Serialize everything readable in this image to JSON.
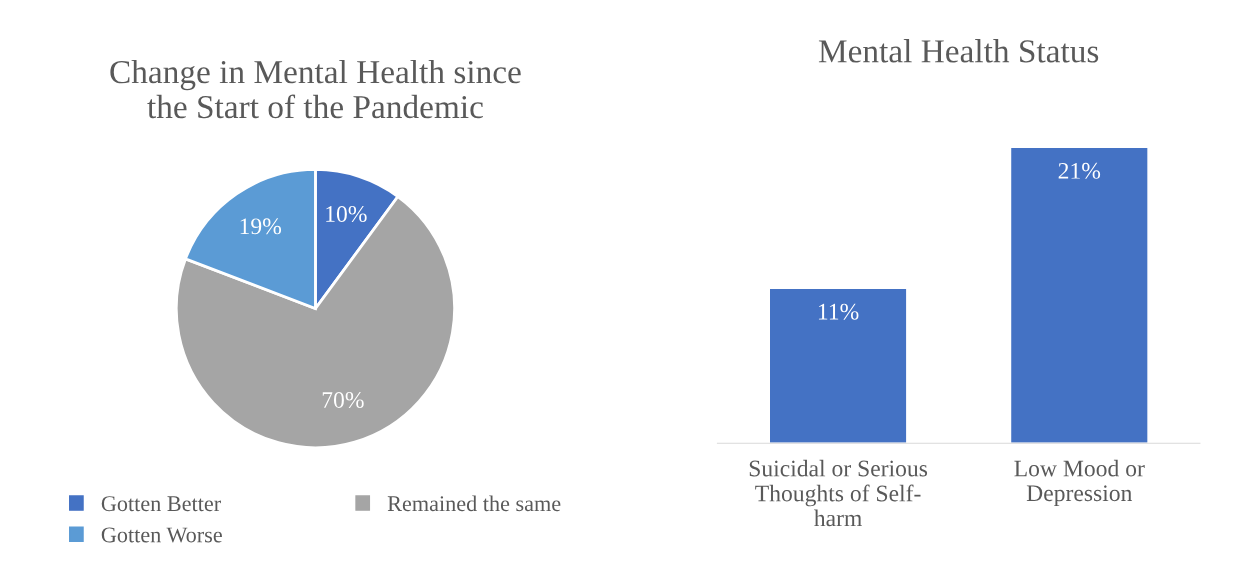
{
  "chart_data": [
    {
      "type": "pie",
      "title": "Change in Mental Health since the Start of the Pandemic",
      "categories": [
        "Gotten Better",
        "Remained the same",
        "Gotten Worse"
      ],
      "values": [
        10,
        70,
        19
      ],
      "value_labels": [
        "10%",
        "70%",
        "19%"
      ],
      "colors": [
        "#4472c4",
        "#a5a5a5",
        "#5b9bd5"
      ],
      "legend": "bottom"
    },
    {
      "type": "bar",
      "title": "Mental Health Status",
      "categories": [
        "Suicidal or Serious Thoughts of Self-harm",
        "Low Mood or Depression"
      ],
      "values": [
        11,
        21
      ],
      "value_labels": [
        "11%",
        "21%"
      ],
      "color": "#4472c4"
    }
  ]
}
